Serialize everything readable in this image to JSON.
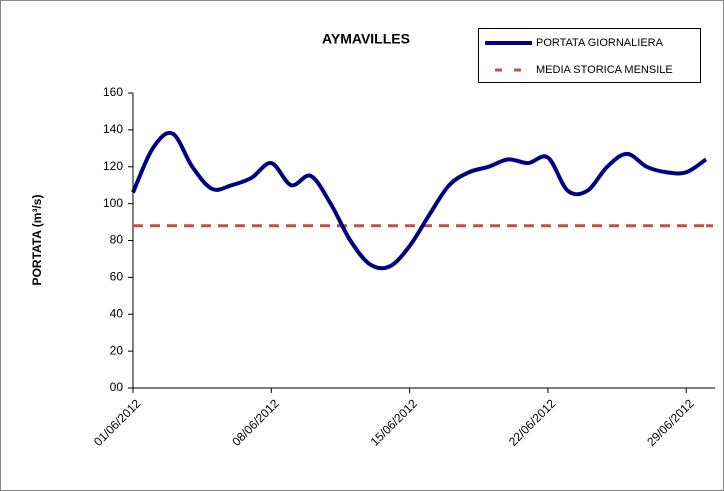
{
  "chart_data": {
    "type": "line",
    "title": "AYMAVILLES",
    "ylabel": "PORTATA (m³/s)",
    "categories": [
      "01/06/2012",
      null,
      null,
      null,
      null,
      null,
      null,
      "08/06/2012",
      null,
      null,
      null,
      null,
      null,
      null,
      "15/06/2012",
      null,
      null,
      null,
      null,
      null,
      null,
      "22/06/2012",
      null,
      null,
      null,
      null,
      null,
      null,
      "29/06/2012",
      null
    ],
    "series": [
      {
        "name": "PORTATA GIORNALIERA",
        "color": "#000080",
        "style": "solid",
        "values": [
          106,
          130,
          138,
          120,
          108,
          110,
          114,
          122,
          110,
          115,
          100,
          80,
          67,
          66,
          77,
          94,
          110,
          117,
          120,
          124,
          122,
          125,
          107,
          107,
          120,
          127,
          120,
          117,
          117,
          124
        ]
      },
      {
        "name": "MEDIA STORICA MENSILE",
        "color": "#c0504d",
        "style": "dashed",
        "values": [
          88,
          88,
          88,
          88,
          88,
          88,
          88,
          88,
          88,
          88,
          88,
          88,
          88,
          88,
          88,
          88,
          88,
          88,
          88,
          88,
          88,
          88,
          88,
          88,
          88,
          88,
          88,
          88,
          88,
          88
        ]
      }
    ],
    "ylim": [
      0,
      160
    ],
    "yticks": [
      {
        "value": 0,
        "label": "00"
      },
      20,
      40,
      60,
      80,
      100,
      120,
      140,
      160
    ],
    "legend": "top-right"
  }
}
